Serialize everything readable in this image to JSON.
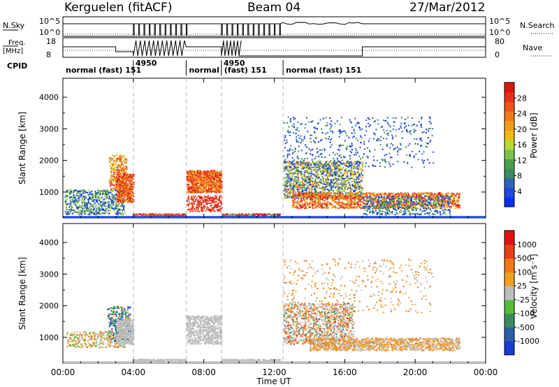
{
  "header": {
    "station": "Kerguelen (fitACF)",
    "beam": "Beam 04",
    "date": "27/Mar/2012"
  },
  "params": {
    "nsky_label": "N.Sky",
    "nsky_ticks": [
      "10^5",
      "10^0"
    ],
    "nsearch_label": "N.Search",
    "nsearch_ticks": [
      "10^5",
      "10^0"
    ],
    "freq_label_1": "Freq.",
    "freq_label_2": "[MHz]",
    "freq_ticks": [
      "18",
      "8"
    ],
    "nave_label": "Nave",
    "nave_ticks": [
      "80",
      "0"
    ],
    "cpid_label": "CPID"
  },
  "cpid_segments": [
    {
      "name": "normal (fast)",
      "id": "151",
      "start_h": 0.0,
      "end_h": 4.0
    },
    {
      "name": "",
      "id": "4950",
      "start_h": 4.0,
      "end_h": 7.0
    },
    {
      "name": "normal",
      "id": "",
      "start_h": 7.0,
      "end_h": 9.0
    },
    {
      "name": "(fast)",
      "id": "151",
      "top_id": "4950",
      "start_h": 9.0,
      "end_h": 12.5
    },
    {
      "name": "normal (fast)",
      "id": "151",
      "start_h": 12.5,
      "end_h": 24.0
    }
  ],
  "panels": {
    "power": {
      "ylabel": "Slant Range [km]",
      "yticks": [
        "4000",
        "3000",
        "2000",
        "1000"
      ],
      "colorbar_label": "Power [dB]",
      "colorbar_ticks": [
        "28",
        "24",
        "20",
        "16",
        "12",
        "8",
        "4"
      ],
      "colors": [
        "#0a2ef0",
        "#1d4ad8",
        "#2e64b4",
        "#3b8c64",
        "#4ca04a",
        "#7cc24c",
        "#b8d838",
        "#f0b818",
        "#f29a1a",
        "#f07a1a",
        "#ec5418",
        "#e43018",
        "#dc1414"
      ]
    },
    "velocity": {
      "ylabel": "Slant Range [km]",
      "yticks": [
        "4000",
        "3000",
        "2000",
        "1000"
      ],
      "colorbar_label": "Velocity [m s⁻¹]",
      "colorbar_ticks": [
        "1000",
        "500",
        "100",
        "25",
        "-25",
        "-100",
        "-500",
        "-1000"
      ],
      "colors": [
        "#1a3cd0",
        "#2a5fa8",
        "#3a8c60",
        "#5aba3c",
        "#bdbdbd",
        "#f0a020",
        "#f07818",
        "#e84018",
        "#dc1414"
      ]
    }
  },
  "xaxis": {
    "ticks": [
      "00:00",
      "04:00",
      "08:00",
      "12:00",
      "16:00",
      "20:00",
      "00:00"
    ],
    "label": "Time UT"
  },
  "chart_data": {
    "type": "heatmap",
    "x_range_hours": [
      0,
      24
    ],
    "y_range_km": [
      180,
      4600
    ],
    "mode_boundaries_hours": [
      4.0,
      7.0,
      9.0,
      12.5
    ],
    "freq_mhz_segments": [
      {
        "start_h": 0.0,
        "end_h": 2.8,
        "value": 11
      },
      {
        "start_h": 2.8,
        "end_h": 4.0,
        "value": 10
      }
    ],
    "power_regions": [
      {
        "start_h": 0.0,
        "end_h": 3.6,
        "range_km": [
          300,
          1100
        ],
        "level": "low"
      },
      {
        "start_h": 2.5,
        "end_h": 3.8,
        "range_km": [
          800,
          2200
        ],
        "level": "high"
      },
      {
        "start_h": 7.0,
        "end_h": 9.0,
        "range_km": [
          400,
          1700
        ],
        "level": "high"
      },
      {
        "start_h": 12.5,
        "end_h": 22.5,
        "range_km": [
          500,
          2000
        ],
        "level": "high"
      }
    ]
  }
}
